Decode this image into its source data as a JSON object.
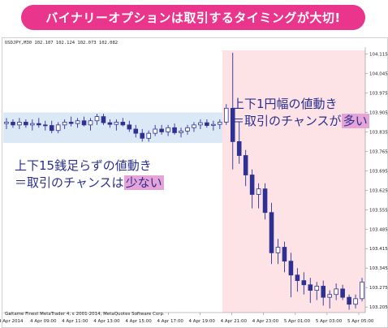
{
  "banner": {
    "text": "バイナリーオプションは取引するタイミングが大切!"
  },
  "symbol_label": "USDJPY,M30  102.107 102.124 102.073 102.082",
  "copyright": "Gaitame Finest MetaTrader 4, c 2001-2014, MetaQuotes Software Corp.",
  "callouts": {
    "left": {
      "line1": "上下15銭足らずの値動き",
      "line2_prefix": "＝取引のチャンスは",
      "line2_highlight": "少ない"
    },
    "right": {
      "line1": "上下1円幅の値動き",
      "line2_prefix": "＝取引のチャンスが",
      "line2_highlight": "多い"
    }
  },
  "colors": {
    "banner": "#e9358c",
    "bull_candle": "#ffffff",
    "bear_candle": "#2e3192",
    "range_band": "#dbe9f6",
    "trend_zone": "#fde3e6",
    "highlight": "#e6a3d8",
    "text": "#2a2f8f"
  },
  "chart_data": {
    "type": "candlestick",
    "symbol": "USDJPY,M30",
    "y_ticks": [
      "104.115",
      "104.045",
      "103.975",
      "103.905",
      "103.835",
      "103.765",
      "103.695",
      "103.625",
      "103.555",
      "103.485",
      "103.415",
      "103.345",
      "103.275",
      "103.205"
    ],
    "x_ticks": [
      "4 Apr 2014",
      "4 Apr 09:00",
      "4 Apr 11:00",
      "4 Apr 13:00",
      "4 Apr 15:00",
      "4 Apr 17:00",
      "4 Apr 19:00",
      "4 Apr 21:00",
      "4 Apr 23:00",
      "5 Apr 01:00",
      "5 Apr 03:00",
      "5 Apr 05:00"
    ],
    "ylim": [
      103.185,
      104.14
    ],
    "candles": [
      {
        "o": 103.865,
        "h": 103.885,
        "l": 103.845,
        "c": 103.87
      },
      {
        "o": 103.87,
        "h": 103.88,
        "l": 103.85,
        "c": 103.86
      },
      {
        "o": 103.86,
        "h": 103.885,
        "l": 103.845,
        "c": 103.87
      },
      {
        "o": 103.87,
        "h": 103.88,
        "l": 103.85,
        "c": 103.86
      },
      {
        "o": 103.86,
        "h": 103.88,
        "l": 103.84,
        "c": 103.865
      },
      {
        "o": 103.865,
        "h": 103.885,
        "l": 103.85,
        "c": 103.86
      },
      {
        "o": 103.86,
        "h": 103.875,
        "l": 103.84,
        "c": 103.858
      },
      {
        "o": 103.858,
        "h": 103.875,
        "l": 103.83,
        "c": 103.84
      },
      {
        "o": 103.84,
        "h": 103.87,
        "l": 103.83,
        "c": 103.86
      },
      {
        "o": 103.86,
        "h": 103.88,
        "l": 103.845,
        "c": 103.87
      },
      {
        "o": 103.87,
        "h": 103.89,
        "l": 103.855,
        "c": 103.865
      },
      {
        "o": 103.865,
        "h": 103.885,
        "l": 103.85,
        "c": 103.875
      },
      {
        "o": 103.875,
        "h": 103.89,
        "l": 103.855,
        "c": 103.86
      },
      {
        "o": 103.86,
        "h": 103.885,
        "l": 103.84,
        "c": 103.875
      },
      {
        "o": 103.875,
        "h": 103.9,
        "l": 103.86,
        "c": 103.89
      },
      {
        "o": 103.89,
        "h": 103.9,
        "l": 103.86,
        "c": 103.868
      },
      {
        "o": 103.868,
        "h": 103.88,
        "l": 103.85,
        "c": 103.862
      },
      {
        "o": 103.862,
        "h": 103.88,
        "l": 103.84,
        "c": 103.87
      },
      {
        "o": 103.87,
        "h": 103.885,
        "l": 103.855,
        "c": 103.86
      },
      {
        "o": 103.86,
        "h": 103.875,
        "l": 103.835,
        "c": 103.845
      },
      {
        "o": 103.845,
        "h": 103.86,
        "l": 103.815,
        "c": 103.83
      },
      {
        "o": 103.83,
        "h": 103.845,
        "l": 103.8,
        "c": 103.812
      },
      {
        "o": 103.812,
        "h": 103.84,
        "l": 103.8,
        "c": 103.83
      },
      {
        "o": 103.83,
        "h": 103.86,
        "l": 103.82,
        "c": 103.845
      },
      {
        "o": 103.845,
        "h": 103.86,
        "l": 103.825,
        "c": 103.835
      },
      {
        "o": 103.835,
        "h": 103.86,
        "l": 103.82,
        "c": 103.85
      },
      {
        "o": 103.85,
        "h": 103.865,
        "l": 103.825,
        "c": 103.832
      },
      {
        "o": 103.832,
        "h": 103.85,
        "l": 103.815,
        "c": 103.838
      },
      {
        "o": 103.838,
        "h": 103.86,
        "l": 103.825,
        "c": 103.85
      },
      {
        "o": 103.85,
        "h": 103.87,
        "l": 103.835,
        "c": 103.86
      },
      {
        "o": 103.86,
        "h": 103.88,
        "l": 103.845,
        "c": 103.868
      },
      {
        "o": 103.868,
        "h": 103.88,
        "l": 103.85,
        "c": 103.858
      },
      {
        "o": 103.858,
        "h": 103.875,
        "l": 103.84,
        "c": 103.862
      },
      {
        "o": 103.862,
        "h": 103.88,
        "l": 103.845,
        "c": 103.87
      },
      {
        "o": 103.87,
        "h": 103.935,
        "l": 103.86,
        "c": 103.92
      },
      {
        "o": 103.92,
        "h": 104.12,
        "l": 103.7,
        "c": 103.8
      },
      {
        "o": 103.8,
        "h": 103.87,
        "l": 103.72,
        "c": 103.75
      },
      {
        "o": 103.75,
        "h": 103.77,
        "l": 103.64,
        "c": 103.68
      },
      {
        "o": 103.68,
        "h": 103.7,
        "l": 103.56,
        "c": 103.61
      },
      {
        "o": 103.61,
        "h": 103.65,
        "l": 103.56,
        "c": 103.63
      },
      {
        "o": 103.63,
        "h": 103.65,
        "l": 103.52,
        "c": 103.545
      },
      {
        "o": 103.545,
        "h": 103.58,
        "l": 103.36,
        "c": 103.4
      },
      {
        "o": 103.4,
        "h": 103.45,
        "l": 103.36,
        "c": 103.42
      },
      {
        "o": 103.42,
        "h": 103.44,
        "l": 103.33,
        "c": 103.37
      },
      {
        "o": 103.37,
        "h": 103.4,
        "l": 103.24,
        "c": 103.32
      },
      {
        "o": 103.32,
        "h": 103.345,
        "l": 103.26,
        "c": 103.3
      },
      {
        "o": 103.3,
        "h": 103.33,
        "l": 103.25,
        "c": 103.285
      },
      {
        "o": 103.285,
        "h": 103.31,
        "l": 103.22,
        "c": 103.265
      },
      {
        "o": 103.265,
        "h": 103.295,
        "l": 103.23,
        "c": 103.28
      },
      {
        "o": 103.28,
        "h": 103.3,
        "l": 103.21,
        "c": 103.24
      },
      {
        "o": 103.24,
        "h": 103.265,
        "l": 103.2,
        "c": 103.25
      },
      {
        "o": 103.25,
        "h": 103.29,
        "l": 103.23,
        "c": 103.27
      },
      {
        "o": 103.27,
        "h": 103.285,
        "l": 103.23,
        "c": 103.24
      },
      {
        "o": 103.24,
        "h": 103.25,
        "l": 103.195,
        "c": 103.215
      },
      {
        "o": 103.215,
        "h": 103.25,
        "l": 103.2,
        "c": 103.235
      },
      {
        "o": 103.235,
        "h": 103.31,
        "l": 103.225,
        "c": 103.295
      }
    ]
  }
}
